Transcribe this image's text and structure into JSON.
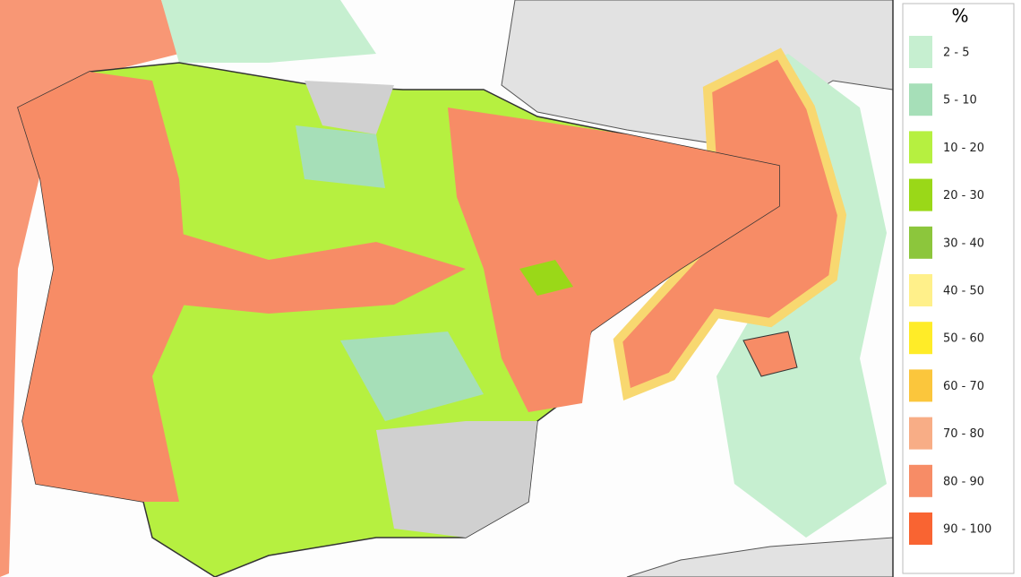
{
  "legend": {
    "title": "%",
    "items": [
      {
        "label": "2 - 5",
        "color": "#c6efd0"
      },
      {
        "label": "5 - 10",
        "color": "#a6dfb8"
      },
      {
        "label": "10 - 20",
        "color": "#b6f040"
      },
      {
        "label": "20 - 30",
        "color": "#9ad818"
      },
      {
        "label": "30 - 40",
        "color": "#8cc63c"
      },
      {
        "label": "40 - 50",
        "color": "#fff08a"
      },
      {
        "label": "50 - 60",
        "color": "#ffec28"
      },
      {
        "label": "60 - 70",
        "color": "#fbc63c"
      },
      {
        "label": "70 - 80",
        "color": "#f8ad86"
      },
      {
        "label": "80 - 90",
        "color": "#f78c66"
      },
      {
        "label": "90 - 100",
        "color": "#f96432"
      }
    ]
  }
}
